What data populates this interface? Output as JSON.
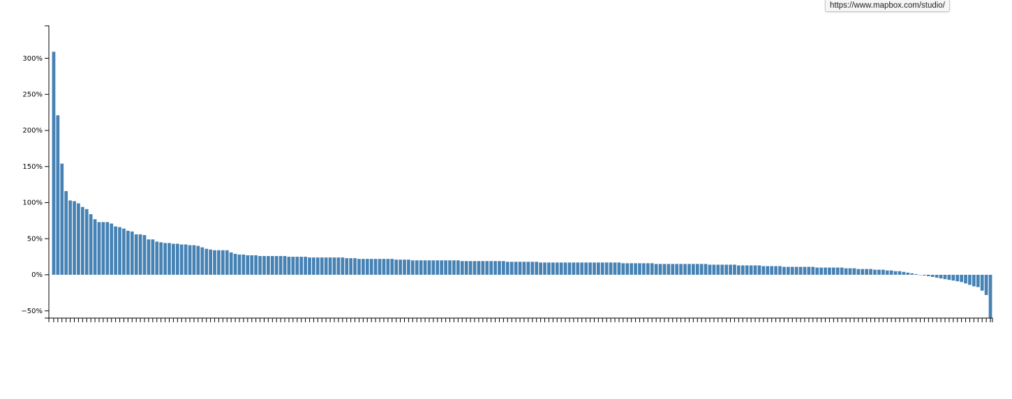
{
  "tooltip": {
    "url": "https://www.mapbox.com/studio/"
  },
  "colors": {
    "bar": "#4682b4",
    "axis": "#000000",
    "text": "#000000"
  },
  "chart_data": {
    "type": "bar",
    "title": "",
    "xlabel": "",
    "ylabel": "",
    "ylim": [
      -60,
      345
    ],
    "y_ticks": [
      {
        "value": 300,
        "label": "300%"
      },
      {
        "value": 250,
        "label": "250%"
      },
      {
        "value": 200,
        "label": "200%"
      },
      {
        "value": 150,
        "label": "150%"
      },
      {
        "value": 100,
        "label": "100%"
      },
      {
        "value": 50,
        "label": "50%"
      },
      {
        "value": 0,
        "label": "0%"
      },
      {
        "value": -50,
        "label": "−50%"
      }
    ],
    "x_tick_labels_legible": false,
    "values": [
      309,
      221,
      154,
      116,
      103,
      102,
      99,
      94,
      91,
      84,
      77,
      73,
      73,
      73,
      71,
      67,
      66,
      64,
      61,
      60,
      56,
      56,
      55,
      49,
      49,
      46,
      45,
      44,
      44,
      43,
      43,
      42,
      42,
      41,
      41,
      40,
      38,
      36,
      35,
      34,
      34,
      34,
      34,
      31,
      29,
      28,
      28,
      27,
      27,
      27,
      26,
      26,
      26,
      26,
      26,
      26,
      26,
      25,
      25,
      25,
      25,
      25,
      24,
      24,
      24,
      24,
      24,
      24,
      24,
      24,
      24,
      23,
      23,
      23,
      22,
      22,
      22,
      22,
      22,
      22,
      22,
      22,
      22,
      21,
      21,
      21,
      21,
      20,
      20,
      20,
      20,
      20,
      20,
      20,
      20,
      20,
      20,
      20,
      20,
      19,
      19,
      19,
      19,
      19,
      19,
      19,
      19,
      19,
      19,
      19,
      18,
      18,
      18,
      18,
      18,
      18,
      18,
      18,
      17,
      17,
      17,
      17,
      17,
      17,
      17,
      17,
      17,
      17,
      17,
      17,
      17,
      17,
      17,
      17,
      17,
      17,
      17,
      17,
      16,
      16,
      16,
      16,
      16,
      16,
      16,
      16,
      15,
      15,
      15,
      15,
      15,
      15,
      15,
      15,
      15,
      15,
      15,
      15,
      15,
      14,
      14,
      14,
      14,
      14,
      14,
      14,
      13,
      13,
      13,
      13,
      13,
      13,
      12,
      12,
      12,
      12,
      12,
      11,
      11,
      11,
      11,
      11,
      11,
      11,
      11,
      10,
      10,
      10,
      10,
      10,
      10,
      10,
      9,
      9,
      9,
      8,
      8,
      8,
      8,
      7,
      7,
      7,
      6,
      6,
      5,
      5,
      4,
      3,
      2,
      1,
      0,
      -1,
      -2,
      -3,
      -4,
      -5,
      -6,
      -7,
      -8,
      -9,
      -10,
      -12,
      -14,
      -16,
      -17,
      -22,
      -28,
      -60
    ]
  }
}
